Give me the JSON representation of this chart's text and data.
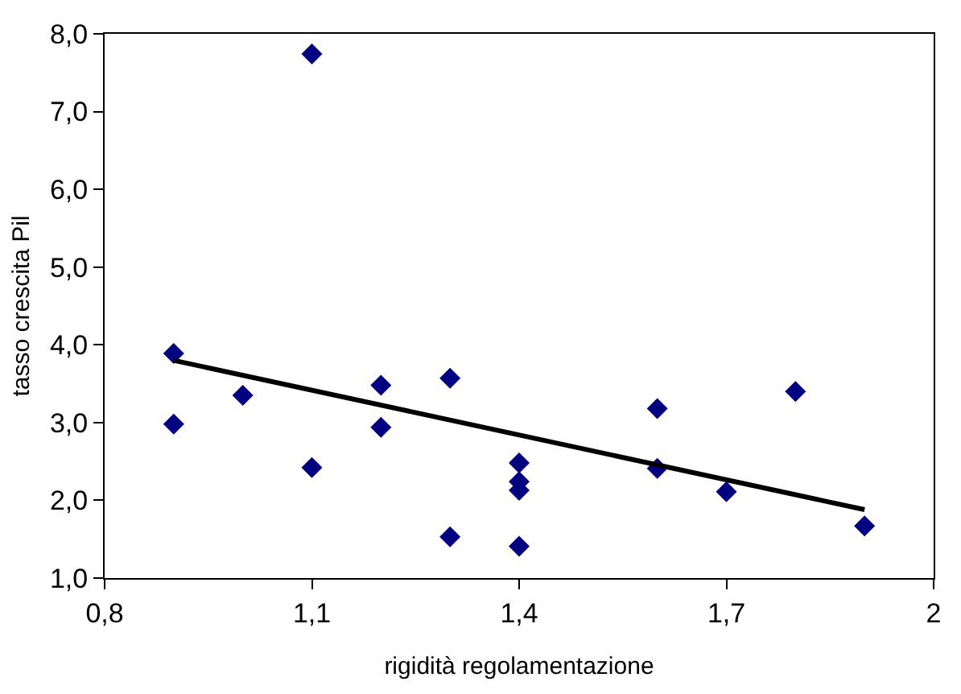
{
  "chart_data": {
    "type": "scatter",
    "xlabel": "rigidità regolamentazione",
    "ylabel": "tasso crescita Pil",
    "xlim": [
      0.8,
      2
    ],
    "xticks": [
      {
        "value": 0.8,
        "label": "0,8"
      },
      {
        "value": 1.1,
        "label": "1,1"
      },
      {
        "value": 1.4,
        "label": "1,4"
      },
      {
        "value": 1.7,
        "label": "1,7"
      },
      2
    ],
    "ylim": [
      1,
      8
    ],
    "yticks": [
      {
        "value": 1,
        "label": "1,0"
      },
      {
        "value": 2,
        "label": "2,0"
      },
      {
        "value": 3,
        "label": "3,0"
      },
      {
        "value": 4,
        "label": "4,0"
      },
      {
        "value": 5,
        "label": "5,0"
      },
      {
        "value": 6,
        "label": "6,0"
      },
      {
        "value": 7,
        "label": "7,0"
      },
      {
        "value": 8,
        "label": "8,0"
      }
    ],
    "series": [
      {
        "marker": "diamond",
        "color": "#000080",
        "x": [
          0.9,
          0.9,
          1.0,
          1.1,
          1.1,
          1.2,
          1.2,
          1.3,
          1.3,
          1.4,
          1.4,
          1.4,
          1.4,
          1.6,
          1.6,
          1.7,
          1.8,
          1.9
        ],
        "values": [
          3.89,
          2.98,
          3.35,
          7.74,
          2.42,
          3.48,
          2.94,
          3.57,
          1.53,
          2.48,
          2.24,
          2.13,
          1.41,
          3.18,
          2.41,
          2.11,
          3.4,
          1.67
        ]
      },
      {
        "type": "line",
        "marker": "none",
        "color": "#000000",
        "x": [
          0.9,
          1.9
        ],
        "values": [
          3.8,
          1.88
        ]
      }
    ]
  }
}
